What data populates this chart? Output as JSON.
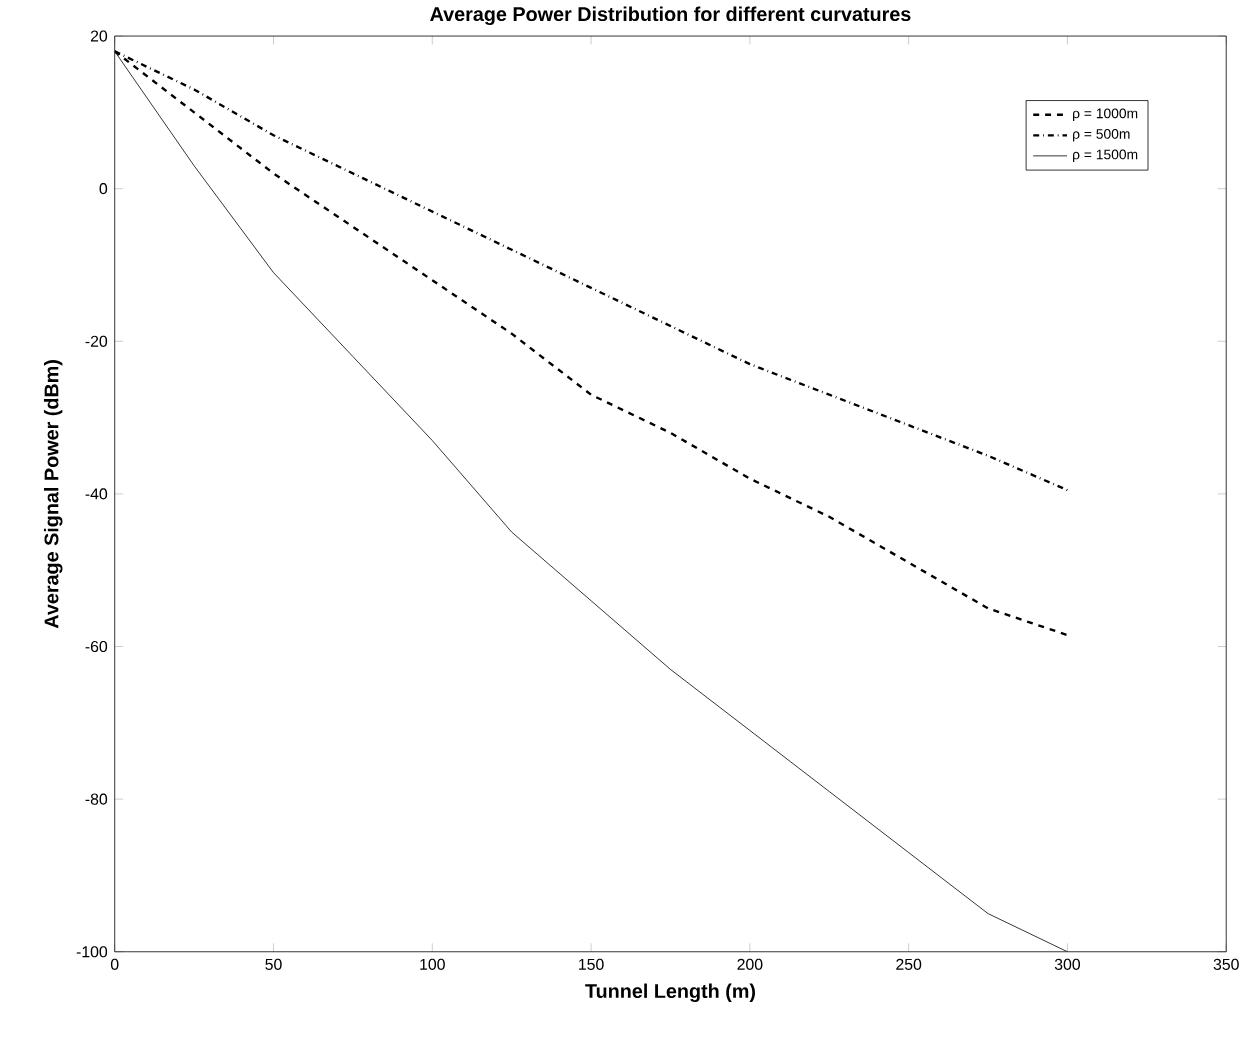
{
  "chart_data": {
    "type": "line",
    "title": "Average Power Distribution for different curvatures",
    "xlabel": "Tunnel Length (m)",
    "ylabel": "Average Signal Power (dBm)",
    "x": [
      0,
      25,
      50,
      75,
      100,
      125,
      150,
      175,
      200,
      225,
      250,
      275,
      300
    ],
    "series": [
      {
        "name": "ρ = 1000m",
        "color": "#000000",
        "line_style": "dashed",
        "values": [
          18,
          10,
          2,
          -5,
          -12,
          -19,
          -27,
          -32,
          -38,
          -43,
          -49,
          -55,
          -58.5
        ]
      },
      {
        "name": "ρ = 500m",
        "color": "#000000",
        "line_style": "dashdot",
        "values": [
          18,
          13,
          7,
          2,
          -3,
          -8,
          -13,
          -18,
          -23,
          -27,
          -31,
          -35,
          -39.5
        ]
      },
      {
        "name": "ρ = 1500m",
        "color": "#000000",
        "line_style": "solid",
        "values": [
          18,
          3,
          -11,
          -22,
          -33,
          -45,
          -54,
          -63,
          -71,
          -79,
          -87,
          -95,
          -100
        ]
      }
    ],
    "xlim": [
      0,
      350
    ],
    "ylim": [
      -100,
      20
    ],
    "xticks": [
      0,
      50,
      100,
      150,
      200,
      250,
      300,
      350
    ],
    "yticks": [
      -100,
      -80,
      -60,
      -40,
      -20,
      0,
      20
    ],
    "grid": false,
    "legend": "top right",
    "marker": "none"
  }
}
